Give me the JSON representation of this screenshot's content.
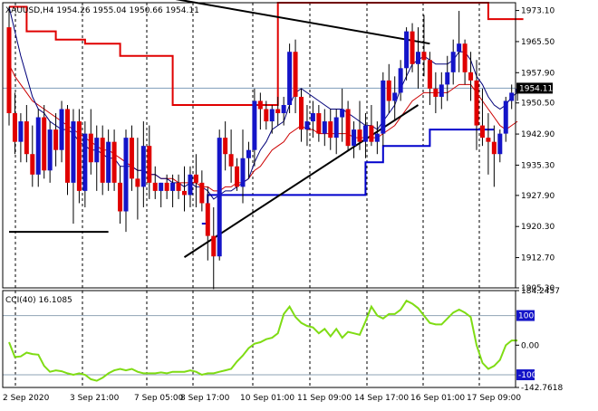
{
  "chart_data": [
    {
      "type": "candlestick",
      "instrument": "XAUUSD,H4",
      "title": "XAUUSD,H4  1954.26 1955.04 1950.66 1954.11",
      "ohlc_label": {
        "open": 1954.26,
        "high": 1955.04,
        "low": 1950.66,
        "close": 1954.11
      },
      "current_price_label": "1954.11",
      "colors": {
        "bull": "#1414c8",
        "bear": "#e00000",
        "wick": "#000000",
        "ma_fast": "#00007a",
        "ma_slow": "#cc0000",
        "channel_upper": "#e00000",
        "channel_lower": "#0000cc",
        "trendline": "#000000",
        "price_line": "#7f9db9"
      },
      "y_ticks": [
        "1973.10",
        "1965.50",
        "1957.90",
        "1950.50",
        "1942.90",
        "1935.30",
        "1927.90",
        "1920.30",
        "1912.70",
        "1905.30"
      ],
      "x_ticks": [
        "2 Sep 2020",
        "3 Sep 21:00",
        "7 Sep 05:00",
        "8 Sep 17:00",
        "10 Sep 01:00",
        "11 Sep 09:00",
        "14 Sep 17:00",
        "16 Sep 01:00",
        "17 Sep 09:00"
      ],
      "ylim": [
        1905.3,
        1975.0
      ],
      "candles": [
        [
          1969,
          1974,
          1945,
          1948
        ],
        [
          1948,
          1953,
          1938,
          1941
        ],
        [
          1941,
          1948,
          1936,
          1946
        ],
        [
          1946,
          1950,
          1936,
          1938
        ],
        [
          1938,
          1945,
          1930,
          1933
        ],
        [
          1933,
          1949,
          1930,
          1947
        ],
        [
          1947,
          1950,
          1932,
          1934
        ],
        [
          1934,
          1946,
          1931,
          1944
        ],
        [
          1944,
          1948,
          1935,
          1939
        ],
        [
          1939,
          1951,
          1936,
          1949
        ],
        [
          1949,
          1950,
          1928,
          1931
        ],
        [
          1931,
          1949,
          1921,
          1946
        ],
        [
          1946,
          1949,
          1926,
          1929
        ],
        [
          1929,
          1946,
          1925,
          1943
        ],
        [
          1943,
          1949,
          1933,
          1936
        ],
        [
          1936,
          1945,
          1929,
          1942
        ],
        [
          1942,
          1945,
          1928,
          1931
        ],
        [
          1931,
          1944,
          1929,
          1941
        ],
        [
          1941,
          1944,
          1929,
          1931
        ],
        [
          1931,
          1935,
          1921,
          1924
        ],
        [
          1924,
          1944,
          1919,
          1942
        ],
        [
          1942,
          1945,
          1929,
          1932
        ],
        [
          1932,
          1942,
          1922,
          1930
        ],
        [
          1930,
          1946,
          1925,
          1940
        ],
        [
          1940,
          1945,
          1927,
          1931
        ],
        [
          1931,
          1935,
          1927,
          1929
        ],
        [
          1929,
          1931,
          1925,
          1931
        ],
        [
          1931,
          1933,
          1927,
          1929
        ],
        [
          1929,
          1933,
          1925,
          1931
        ],
        [
          1931,
          1933,
          1927,
          1929
        ],
        [
          1929,
          1935,
          1924,
          1928
        ],
        [
          1928,
          1935,
          1925,
          1933
        ],
        [
          1933,
          1938,
          1925,
          1931
        ],
        [
          1931,
          1934,
          1924,
          1926
        ],
        [
          1926,
          1930,
          1912,
          1918
        ],
        [
          1918,
          1925,
          1905,
          1913
        ],
        [
          1913,
          1944,
          1912,
          1942
        ],
        [
          1942,
          1946,
          1934,
          1938
        ],
        [
          1938,
          1944,
          1931,
          1935
        ],
        [
          1935,
          1937,
          1929,
          1930
        ],
        [
          1930,
          1944,
          1926,
          1937
        ],
        [
          1937,
          1941,
          1932,
          1939
        ],
        [
          1939,
          1954,
          1935,
          1951
        ],
        [
          1951,
          1953,
          1944,
          1949
        ],
        [
          1949,
          1951,
          1944,
          1946
        ],
        [
          1946,
          1950,
          1943,
          1949
        ],
        [
          1949,
          1952,
          1945,
          1948
        ],
        [
          1948,
          1952,
          1945,
          1950
        ],
        [
          1950,
          1965,
          1948,
          1963
        ],
        [
          1963,
          1966,
          1948,
          1952
        ],
        [
          1952,
          1954,
          1941,
          1944
        ],
        [
          1944,
          1950,
          1940,
          1946
        ],
        [
          1946,
          1951,
          1942,
          1948
        ],
        [
          1948,
          1950,
          1941,
          1943
        ],
        [
          1943,
          1949,
          1940,
          1946
        ],
        [
          1946,
          1949,
          1939,
          1942
        ],
        [
          1942,
          1949,
          1938,
          1947
        ],
        [
          1947,
          1954,
          1941,
          1949
        ],
        [
          1949,
          1951,
          1939,
          1940
        ],
        [
          1940,
          1946,
          1937,
          1944
        ],
        [
          1944,
          1951,
          1939,
          1941
        ],
        [
          1941,
          1948,
          1937,
          1945
        ],
        [
          1945,
          1950,
          1940,
          1941
        ],
        [
          1941,
          1946,
          1938,
          1943
        ],
        [
          1943,
          1958,
          1940,
          1956
        ],
        [
          1956,
          1960,
          1948,
          1951
        ],
        [
          1951,
          1957,
          1946,
          1953
        ],
        [
          1953,
          1961,
          1951,
          1959
        ],
        [
          1959,
          1969,
          1956,
          1968
        ],
        [
          1968,
          1970,
          1958,
          1960
        ],
        [
          1960,
          1969,
          1954,
          1963
        ],
        [
          1963,
          1972,
          1957,
          1961
        ],
        [
          1961,
          1963,
          1950,
          1954
        ],
        [
          1954,
          1958,
          1948,
          1952
        ],
        [
          1952,
          1958,
          1949,
          1955
        ],
        [
          1955,
          1962,
          1951,
          1958
        ],
        [
          1958,
          1966,
          1955,
          1963
        ],
        [
          1963,
          1973,
          1958,
          1965
        ],
        [
          1965,
          1966,
          1955,
          1958
        ],
        [
          1958,
          1963,
          1951,
          1956
        ],
        [
          1956,
          1961,
          1939,
          1945
        ],
        [
          1945,
          1954,
          1940,
          1942
        ],
        [
          1942,
          1948,
          1933,
          1941
        ],
        [
          1941,
          1945,
          1930,
          1938
        ],
        [
          1938,
          1944,
          1936,
          1943
        ],
        [
          1943,
          1952,
          1941,
          1951
        ],
        [
          1951,
          1955,
          1949,
          1953
        ],
        [
          1953,
          1955,
          1951,
          1954
        ]
      ],
      "ma_fast": [
        1974,
        1968,
        1962,
        1957,
        1952,
        1949,
        1948,
        1946,
        1945,
        1944,
        1944,
        1943,
        1941,
        1940,
        1939,
        1939,
        1938,
        1937,
        1937,
        1935,
        1935,
        1935,
        1934,
        1934,
        1933,
        1933,
        1932,
        1932,
        1931,
        1931,
        1930,
        1931,
        1930,
        1930,
        1929,
        1927,
        1928,
        1929,
        1929,
        1930,
        1931,
        1932,
        1936,
        1939,
        1941,
        1944,
        1945,
        1946,
        1950,
        1953,
        1954,
        1953,
        1952,
        1951,
        1950,
        1949,
        1949,
        1949,
        1948,
        1947,
        1946,
        1945,
        1945,
        1944,
        1946,
        1948,
        1950,
        1954,
        1957,
        1960,
        1961,
        1962,
        1961,
        1960,
        1960,
        1960,
        1961,
        1963,
        1963,
        1961,
        1957,
        1955,
        1952,
        1950,
        1949,
        1950,
        1952,
        1953
      ],
      "ma_slow": [
        1960,
        1957,
        1955,
        1953,
        1951,
        1950,
        1949,
        1948,
        1947,
        1946,
        1945,
        1944,
        1943,
        1942,
        1941,
        1940,
        1939,
        1939,
        1938,
        1937,
        1936,
        1935,
        1934,
        1934,
        1933,
        1933,
        1932,
        1932,
        1932,
        1931,
        1931,
        1931,
        1931,
        1930,
        1930,
        1929,
        1929,
        1930,
        1930,
        1931,
        1931,
        1932,
        1934,
        1935,
        1937,
        1939,
        1940,
        1941,
        1943,
        1944,
        1945,
        1944,
        1944,
        1943,
        1943,
        1943,
        1943,
        1943,
        1943,
        1942,
        1942,
        1942,
        1942,
        1942,
        1943,
        1944,
        1945,
        1947,
        1949,
        1951,
        1952,
        1953,
        1953,
        1953,
        1953,
        1953,
        1954,
        1955,
        1955,
        1955,
        1953,
        1951,
        1949,
        1947,
        1945,
        1944,
        1945,
        1946
      ],
      "channel_upper": [
        [
          0,
          1974
        ],
        [
          3,
          1974
        ],
        [
          3,
          1968
        ],
        [
          8,
          1968
        ],
        [
          8,
          1966
        ],
        [
          13,
          1966
        ],
        [
          13,
          1965
        ],
        [
          19,
          1965
        ],
        [
          19,
          1962
        ],
        [
          28,
          1962
        ],
        [
          28,
          1950
        ],
        [
          46,
          1950
        ],
        [
          46,
          1975
        ],
        [
          82,
          1975
        ],
        [
          82,
          1971
        ],
        [
          88,
          1971
        ]
      ],
      "channel_lower": [
        [
          33,
          1921
        ],
        [
          34,
          1921
        ],
        [
          34,
          1928
        ],
        [
          61,
          1928
        ],
        [
          61,
          1936
        ],
        [
          64,
          1936
        ],
        [
          64,
          1940
        ],
        [
          72,
          1940
        ],
        [
          72,
          1944
        ],
        [
          75,
          1944
        ],
        [
          75,
          1944
        ],
        [
          83,
          1944
        ]
      ],
      "trendlines": [
        [
          [
            0,
            1919
          ],
          [
            17,
            1919
          ]
        ],
        [
          [
            30,
            1912.8
          ],
          [
            70,
            1950
          ]
        ],
        [
          [
            20,
            1978
          ],
          [
            72,
            1965
          ]
        ]
      ],
      "indicator": {
        "name": "CCI(40) 16.1085",
        "y_ticks": [
          "184.2457",
          "100",
          "0.00",
          "-100",
          "-142.7618"
        ],
        "ylim": [
          -142.7618,
          184.2457
        ],
        "levels": [
          100,
          -100
        ],
        "values": [
          10,
          -40,
          -38,
          -25,
          -30,
          -32,
          -70,
          -90,
          -85,
          -88,
          -95,
          -100,
          -95,
          -100,
          -115,
          -120,
          -110,
          -95,
          -85,
          -80,
          -85,
          -80,
          -90,
          -95,
          -95,
          -95,
          -92,
          -95,
          -90,
          -90,
          -90,
          -85,
          -90,
          -100,
          -95,
          -95,
          -90,
          -85,
          -80,
          -55,
          -35,
          -10,
          5,
          10,
          20,
          25,
          40,
          105,
          130,
          95,
          75,
          65,
          60,
          40,
          55,
          30,
          55,
          25,
          45,
          40,
          35,
          80,
          130,
          100,
          90,
          105,
          105,
          120,
          150,
          140,
          125,
          100,
          75,
          70,
          70,
          90,
          110,
          120,
          110,
          95,
          0,
          -60,
          -80,
          -70,
          -50,
          0,
          16,
          16
        ]
      }
    }
  ]
}
